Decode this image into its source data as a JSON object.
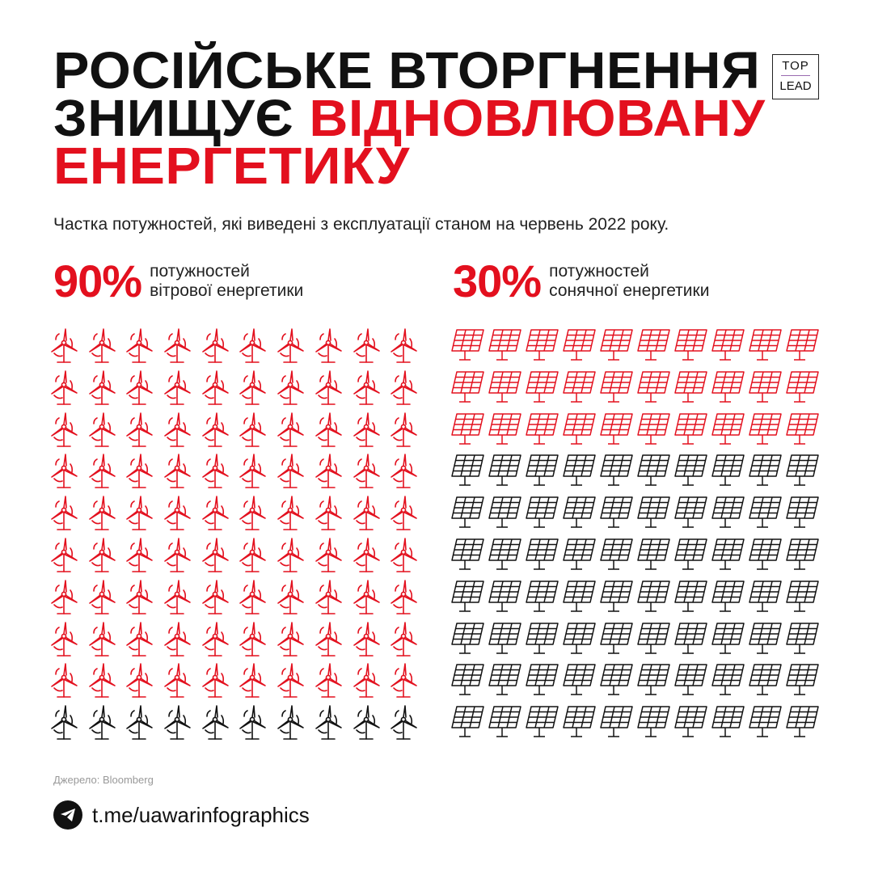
{
  "title": {
    "line1": "Російське вторгнення",
    "line2_black": "знищує",
    "line2_red": "відновлювану",
    "line3": "енергетику"
  },
  "logo": {
    "top": "TOP",
    "bottom": "LEAD"
  },
  "subtitle": "Частка потужностей, які виведені з експлуатації станом на червень 2022 року.",
  "stats": [
    {
      "pct": "90%",
      "line1": "потужностей",
      "line2": "вітрової енергетики"
    },
    {
      "pct": "30%",
      "line1": "потужностей",
      "line2": "сонячної енергетики"
    }
  ],
  "source": "Джерело: Bloomberg",
  "telegram": "t.me/uawarinfographics",
  "colors": {
    "accent": "#e3101e",
    "base": "#111111"
  },
  "chart_data": [
    {
      "type": "pictogram",
      "title": "вітрової енергетики",
      "icon": "wind-turbine-icon",
      "total": 100,
      "highlighted": 90,
      "unit": "%"
    },
    {
      "type": "pictogram",
      "title": "сонячної енергетики",
      "icon": "solar-panel-icon",
      "total": 100,
      "highlighted": 30,
      "unit": "%"
    }
  ]
}
